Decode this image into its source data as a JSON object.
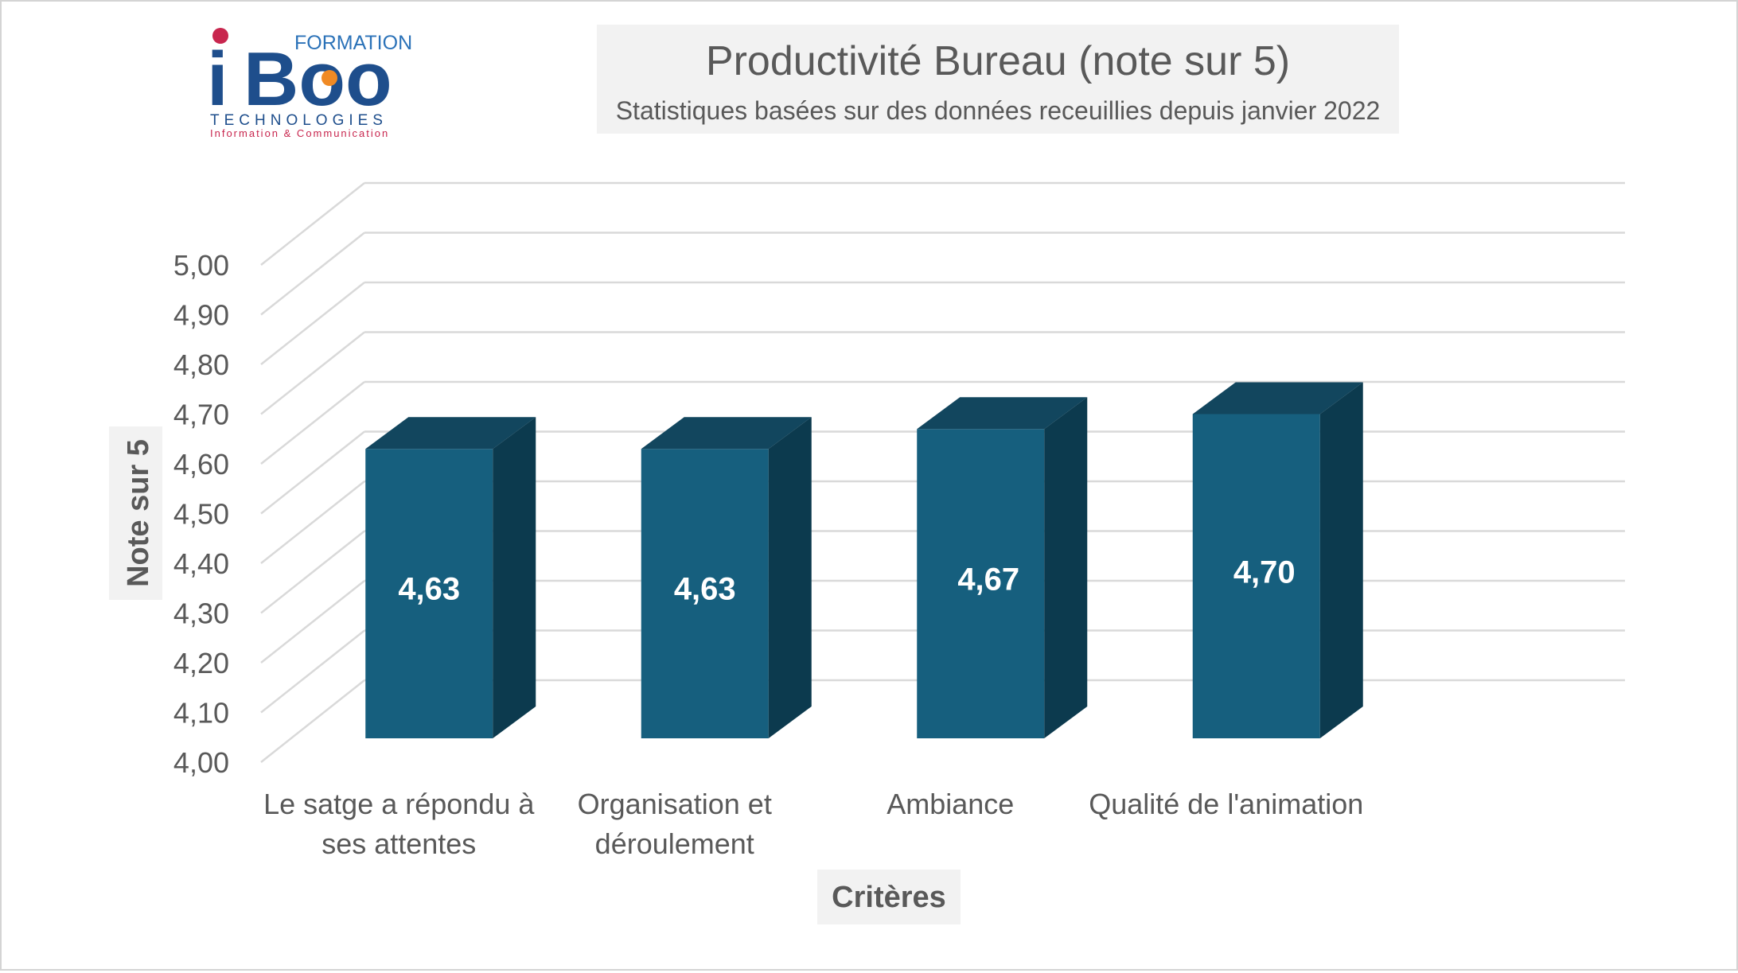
{
  "logo": {
    "formation": "FORMATION",
    "brand_i": "i",
    "brand_boo": "Boo",
    "technologies": "TECHNOLOGIES",
    "tagline": "Information & Communication"
  },
  "chart_data": {
    "type": "bar",
    "style": "3d",
    "title": "Productivité Bureau (note sur 5)",
    "subtitle": "Statistiques basées sur des données receuillies depuis janvier 2022",
    "xlabel": "Critères",
    "ylabel": "Note sur 5",
    "ylim": [
      4.0,
      5.0
    ],
    "grid": true,
    "legend": "none",
    "y_ticks": [
      "4,00",
      "4,10",
      "4,20",
      "4,30",
      "4,40",
      "4,50",
      "4,60",
      "4,70",
      "4,80",
      "4,90",
      "5,00"
    ],
    "categories": [
      [
        "Le satge a répondu à",
        "ses attentes"
      ],
      [
        "Organisation et",
        "déroulement"
      ],
      [
        "Ambiance"
      ],
      [
        "Qualité de l'animation"
      ]
    ],
    "values": [
      4.63,
      4.63,
      4.67,
      4.7
    ],
    "value_labels": [
      "4,63",
      "4,63",
      "4,67",
      "4,70"
    ],
    "colors": {
      "bar_front": "#165F7E",
      "bar_top": "#12465E",
      "bar_side": "#0C3A4E",
      "grid": "#D9D9D9",
      "text": "#595959",
      "title_bg": "#F2F2F2",
      "data_label": "#FFFFFF"
    }
  }
}
